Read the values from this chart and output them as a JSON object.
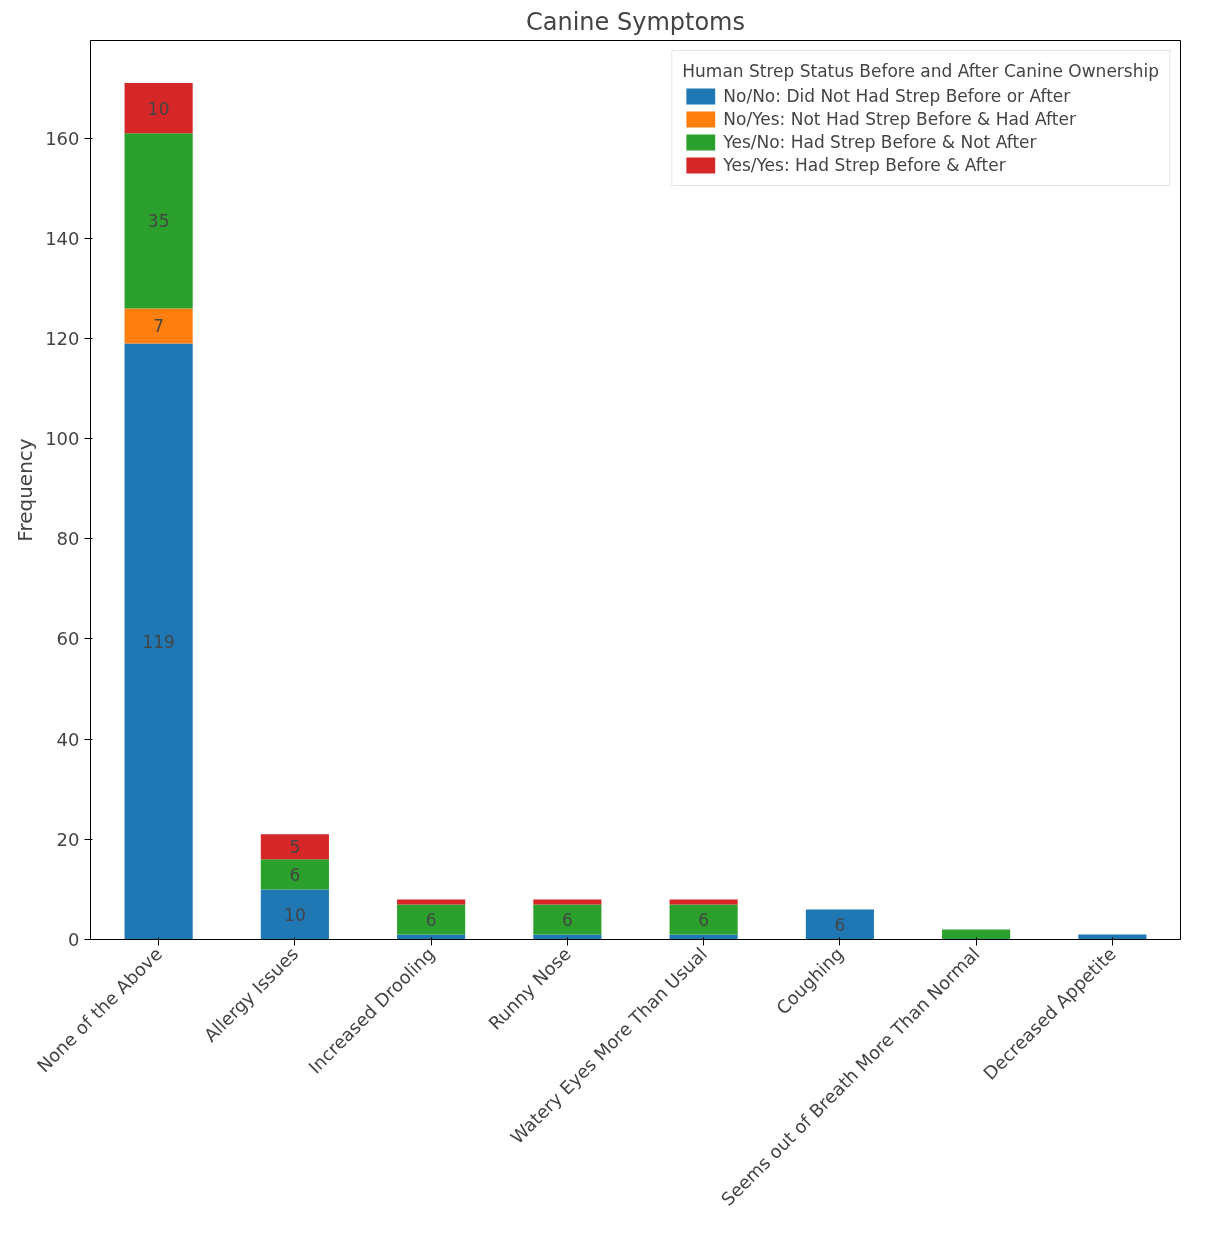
{
  "chart_data": {
    "type": "bar",
    "title": "Canine Symptoms",
    "ylabel": "Frequency",
    "categories": [
      "None of the Above",
      "Allergy Issues",
      "Increased Drooling",
      "Runny Nose",
      "Watery Eyes More Than Usual",
      "Coughing",
      "Seems out of Breath More Than Normal",
      "Decreased Appetite"
    ],
    "stacked": true,
    "legend": "top right",
    "legend_title": "Human Strep Status Before and After Canine Ownership",
    "ylim": [
      0,
      179.5
    ],
    "yticks": [
      0,
      20,
      40,
      60,
      80,
      100,
      120,
      140,
      160
    ],
    "grid": false,
    "series": [
      {
        "name": "No/No: Did Not Had Strep Before or After",
        "color": "#1f77b4",
        "values": [
          119,
          10,
          1,
          1,
          1,
          6,
          0,
          1
        ],
        "value_labels": [
          "119",
          "10",
          null,
          null,
          null,
          "6",
          null,
          null
        ]
      },
      {
        "name": "No/Yes: Not Had Strep Before & Had After",
        "color": "#ff7f0e",
        "values": [
          7,
          0,
          0,
          0,
          0,
          0,
          0,
          0
        ],
        "value_labels": [
          "7",
          null,
          null,
          null,
          null,
          null,
          null,
          null
        ]
      },
      {
        "name": "Yes/No: Had Strep Before & Not After",
        "color": "#2ca02c",
        "values": [
          35,
          6,
          6,
          6,
          6,
          0,
          2,
          0
        ],
        "value_labels": [
          "35",
          "6",
          "6",
          "6",
          "6",
          null,
          null,
          null
        ]
      },
      {
        "name": "Yes/Yes: Had Strep Before & After",
        "color": "#d62728",
        "values": [
          10,
          5,
          1,
          1,
          1,
          0,
          0,
          0
        ],
        "value_labels": [
          "10",
          "5",
          null,
          null,
          null,
          null,
          null,
          null
        ]
      }
    ]
  }
}
